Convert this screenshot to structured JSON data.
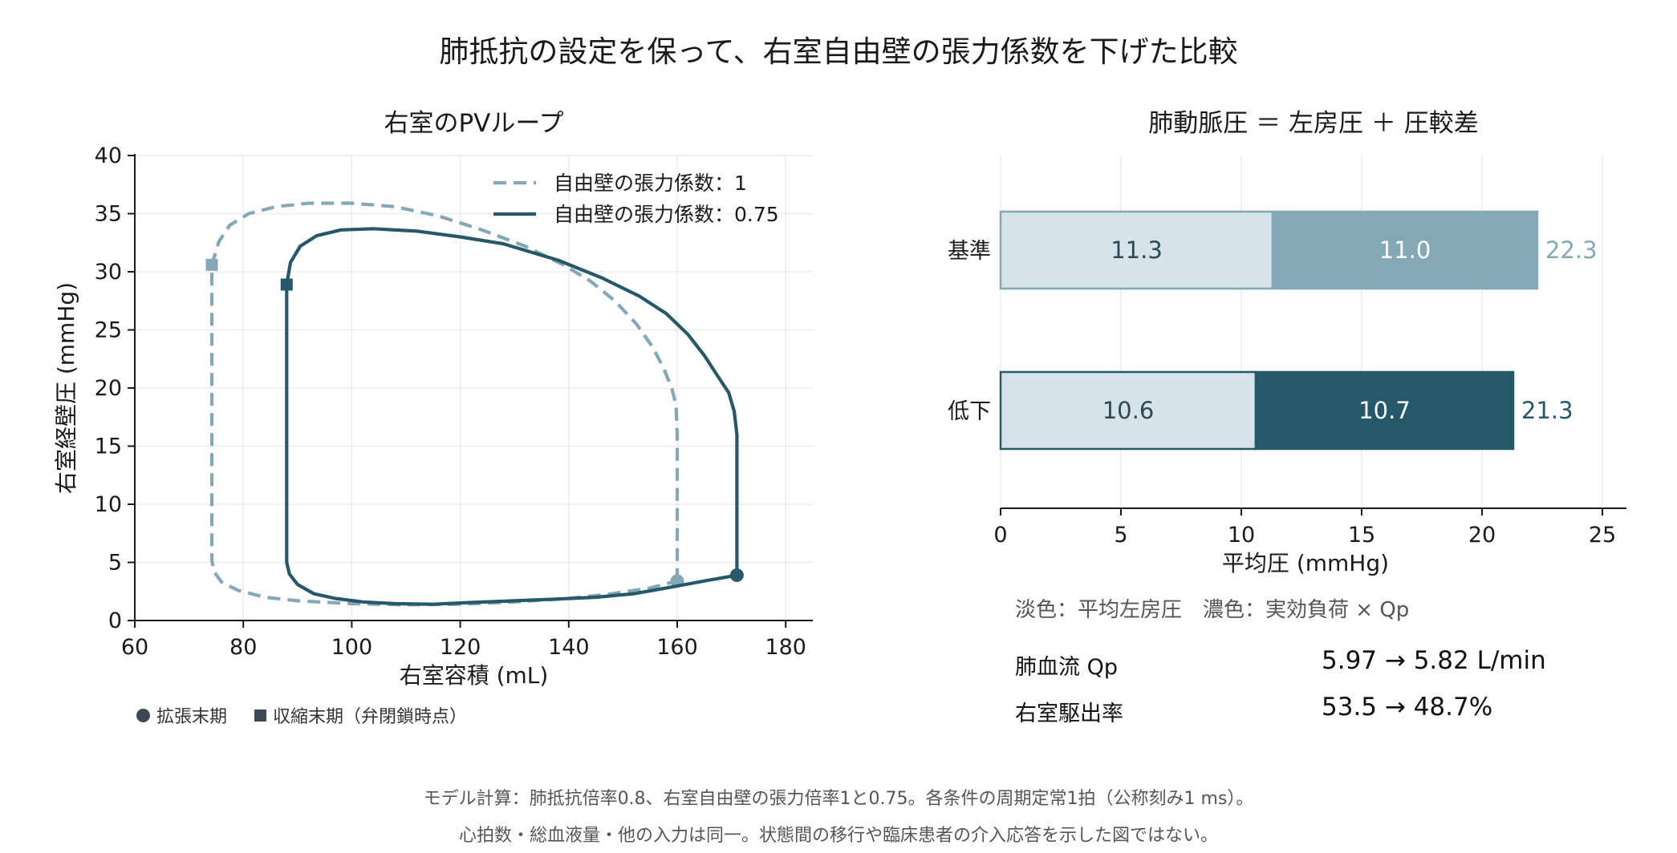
{
  "title": "肺抵抗の設定を保って、右室自由壁の張力係数を下げた比較",
  "colors": {
    "baseline": "#84a8b5",
    "reduced": "#255868",
    "light_fill": "#d6e4ea",
    "axis": "#1a1a1a",
    "grid": "#ececec"
  },
  "chart_data": [
    {
      "type": "line",
      "title": "右室のPVループ",
      "xlabel": "右室容積 (mL)",
      "ylabel": "右室経壁圧 (mmHg)",
      "xlim": [
        60,
        185
      ],
      "ylim": [
        0,
        40
      ],
      "xticks": [
        "60",
        "80",
        "100",
        "120",
        "140",
        "160",
        "180"
      ],
      "yticks": [
        "0",
        "5",
        "10",
        "15",
        "20",
        "25",
        "30",
        "35",
        "40"
      ],
      "grid": true,
      "legend_position": "upper-right",
      "series": [
        {
          "name": "自由壁の張力係数：1",
          "style": "dashed",
          "color": "#84a8b5",
          "end_diastole": [
            160,
            3.4
          ],
          "end_systole": [
            74.2,
            30.6
          ],
          "points": [
            [
              160,
              3.4
            ],
            [
              160,
              5.5
            ],
            [
              160,
              7
            ],
            [
              160,
              10
            ],
            [
              160,
              13
            ],
            [
              160,
              16
            ],
            [
              159.8,
              18.5
            ],
            [
              159,
              20
            ],
            [
              157.5,
              21.7
            ],
            [
              155.5,
              23.5
            ],
            [
              152.5,
              25.5
            ],
            [
              148.5,
              27.5
            ],
            [
              144,
              29.2
            ],
            [
              139,
              30.6
            ],
            [
              132,
              32.2
            ],
            [
              124,
              33.6
            ],
            [
              116,
              34.8
            ],
            [
              108,
              35.6
            ],
            [
              100,
              35.9
            ],
            [
              92,
              35.9
            ],
            [
              86,
              35.6
            ],
            [
              81,
              35
            ],
            [
              77.5,
              34
            ],
            [
              75.5,
              32.6
            ],
            [
              74.2,
              30.6
            ],
            [
              74.2,
              25
            ],
            [
              74.2,
              20
            ],
            [
              74.2,
              15
            ],
            [
              74.2,
              10
            ],
            [
              74.2,
              5.2
            ],
            [
              74.6,
              4.2
            ],
            [
              76,
              3.3
            ],
            [
              79,
              2.6
            ],
            [
              84,
              2
            ],
            [
              90,
              1.7
            ],
            [
              100,
              1.45
            ],
            [
              110,
              1.35
            ],
            [
              120,
              1.4
            ],
            [
              130,
              1.6
            ],
            [
              140,
              1.9
            ],
            [
              148,
              2.3
            ],
            [
              155,
              2.8
            ],
            [
              160,
              3.4
            ]
          ]
        },
        {
          "name": "自由壁の張力係数：0.75",
          "style": "solid",
          "color": "#255868",
          "end_diastole": [
            171,
            3.9
          ],
          "end_systole": [
            88,
            28.9
          ],
          "points": [
            [
              171,
              3.9
            ],
            [
              171,
              6
            ],
            [
              171,
              8
            ],
            [
              171,
              10
            ],
            [
              171,
              12
            ],
            [
              171,
              14
            ],
            [
              171,
              16
            ],
            [
              170.5,
              18
            ],
            [
              169.5,
              19.6
            ],
            [
              167.5,
              21
            ],
            [
              165,
              22.8
            ],
            [
              162,
              24.6
            ],
            [
              158,
              26.4
            ],
            [
              153,
              27.9
            ],
            [
              146,
              29.5
            ],
            [
              138,
              31
            ],
            [
              128,
              32.4
            ],
            [
              120,
              33
            ],
            [
              112,
              33.5
            ],
            [
              104,
              33.7
            ],
            [
              98,
              33.6
            ],
            [
              93.5,
              33.1
            ],
            [
              90.5,
              32.2
            ],
            [
              88.7,
              30.8
            ],
            [
              88,
              28.9
            ],
            [
              88,
              25
            ],
            [
              88,
              20
            ],
            [
              88,
              15
            ],
            [
              88,
              10
            ],
            [
              88,
              5
            ],
            [
              88.5,
              4
            ],
            [
              90,
              3.1
            ],
            [
              93,
              2.3
            ],
            [
              97,
              1.9
            ],
            [
              102,
              1.6
            ],
            [
              108,
              1.45
            ],
            [
              115,
              1.4
            ],
            [
              122,
              1.55
            ],
            [
              130,
              1.7
            ],
            [
              138,
              1.85
            ],
            [
              145,
              2
            ],
            [
              152,
              2.3
            ],
            [
              158,
              2.8
            ],
            [
              165,
              3.4
            ],
            [
              171,
              3.9
            ]
          ]
        }
      ],
      "marker_key": {
        "end_diastole": "拡張末期",
        "end_systole": "収縮末期（弁閉鎖時点）"
      }
    },
    {
      "type": "bar",
      "orientation": "horizontal",
      "stacked": true,
      "title": "肺動脈圧 ＝ 左房圧 ＋ 圧較差",
      "xlabel": "平均圧 (mmHg)",
      "xlim": [
        0,
        26
      ],
      "xticks": [
        "0",
        "5",
        "10",
        "15",
        "20",
        "25"
      ],
      "grid": true,
      "categories": [
        "基準",
        "低下"
      ],
      "series": [
        {
          "name": "平均左房圧",
          "values": [
            11.3,
            10.6
          ]
        },
        {
          "name": "実効負荷 × Qp",
          "values": [
            11.0,
            10.7
          ]
        }
      ],
      "totals": [
        22.3,
        21.3
      ],
      "value_labels": [
        [
          "11.3",
          "11.0",
          "22.3"
        ],
        [
          "10.6",
          "10.7",
          "21.3"
        ]
      ],
      "note": "淡色：平均左房圧　濃色：実効負荷 × Qp"
    }
  ],
  "metrics": [
    {
      "label": "肺血流 Qp",
      "value": "5.97 → 5.82 L/min"
    },
    {
      "label": "右室駆出率",
      "value": "53.5 → 48.7%"
    }
  ],
  "footer": [
    "モデル計算：肺抵抗倍率0.8、右室自由壁の張力倍率1と0.75。各条件の周期定常1拍（公称刻み1 ms）。",
    "心拍数・総血液量・他の入力は同一。状態間の移行や臨床患者の介入応答を示した図ではない。"
  ]
}
